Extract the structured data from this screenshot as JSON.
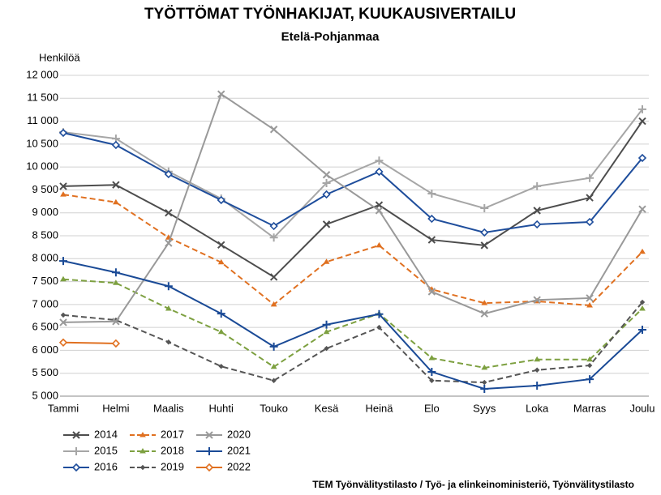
{
  "chart_data": {
    "type": "line",
    "title": "TYÖTTÖMAT TYÖNHAKIJAT, KUUKAUSIVERTAILU",
    "subtitle": "Etelä-Pohjanmaa",
    "y_label": "Henkilöä",
    "source": "TEM Työnvälitystilasto / Työ- ja elinkeinoministeriö, Työnvälitystilasto",
    "categories": [
      "Tammi",
      "Helmi",
      "Maalis",
      "Huhti",
      "Touko",
      "Kesä",
      "Heinä",
      "Elo",
      "Syys",
      "Loka",
      "Marras",
      "Joulu"
    ],
    "ylim": [
      5000,
      12000
    ],
    "yticks": [
      {
        "value": 5000,
        "label": "5 000"
      },
      {
        "value": 5500,
        "label": "5 500"
      },
      {
        "value": 6000,
        "label": "6 000"
      },
      {
        "value": 6500,
        "label": "6 500"
      },
      {
        "value": 7000,
        "label": "7 000"
      },
      {
        "value": 7500,
        "label": "7 500"
      },
      {
        "value": 8000,
        "label": "8 000"
      },
      {
        "value": 8500,
        "label": "8 500"
      },
      {
        "value": 9000,
        "label": "9 000"
      },
      {
        "value": 9500,
        "label": "9 500"
      },
      {
        "value": 10000,
        "label": "10 000"
      },
      {
        "value": 10500,
        "label": "10 500"
      },
      {
        "value": 11000,
        "label": "11 000"
      },
      {
        "value": 11500,
        "label": "11 500"
      },
      {
        "value": 12000,
        "label": "12 000"
      }
    ],
    "grid": true,
    "series": [
      {
        "name": "2014",
        "color": "#4d4d4d",
        "marker": "x",
        "dashed": false,
        "values": [
          9580,
          9610,
          9000,
          8300,
          7600,
          8750,
          9170,
          8410,
          8290,
          9050,
          9330,
          11000
        ]
      },
      {
        "name": "2015",
        "color": "#a6a6a6",
        "marker": "plus",
        "dashed": false,
        "values": [
          10760,
          10620,
          9900,
          9310,
          8460,
          9650,
          10140,
          9420,
          9100,
          9580,
          9760,
          11260
        ]
      },
      {
        "name": "2016",
        "color": "#1f4e9c",
        "marker": "diamond",
        "dashed": false,
        "values": [
          10745,
          10480,
          9844,
          9278,
          8712,
          9402,
          9897,
          8871,
          8571,
          8748,
          8801,
          10197
        ]
      },
      {
        "name": "2017",
        "color": "#e07020",
        "marker": "triangle",
        "dashed": true,
        "values": [
          9400,
          9230,
          8460,
          7920,
          7000,
          7930,
          8290,
          7330,
          7030,
          7070,
          6980,
          8150
        ]
      },
      {
        "name": "2018",
        "color": "#7da040",
        "marker": "triangle",
        "dashed": true,
        "values": [
          7550,
          7470,
          6910,
          6400,
          5640,
          6400,
          6800,
          5830,
          5620,
          5800,
          5800,
          6910
        ]
      },
      {
        "name": "2019",
        "color": "#555555",
        "marker": "small-diamond",
        "dashed": true,
        "values": [
          6770,
          6660,
          6180,
          5650,
          5340,
          6040,
          6500,
          5340,
          5300,
          5570,
          5670,
          7050
        ]
      },
      {
        "name": "2020",
        "color": "#999999",
        "marker": "x",
        "dashed": false,
        "values": [
          6610,
          6630,
          8340,
          11590,
          10820,
          9830,
          9050,
          7280,
          6800,
          7100,
          7140,
          9080
        ]
      },
      {
        "name": "2021",
        "color": "#1a4a96",
        "marker": "plus",
        "dashed": false,
        "values": [
          7950,
          7700,
          7400,
          6800,
          6080,
          6560,
          6790,
          5530,
          5160,
          5230,
          5370,
          6450
        ]
      },
      {
        "name": "2022",
        "color": "#e07020",
        "marker": "diamond",
        "dashed": false,
        "values": [
          6170,
          6150,
          null,
          null,
          null,
          null,
          null,
          null,
          null,
          null,
          null,
          null
        ]
      }
    ]
  }
}
